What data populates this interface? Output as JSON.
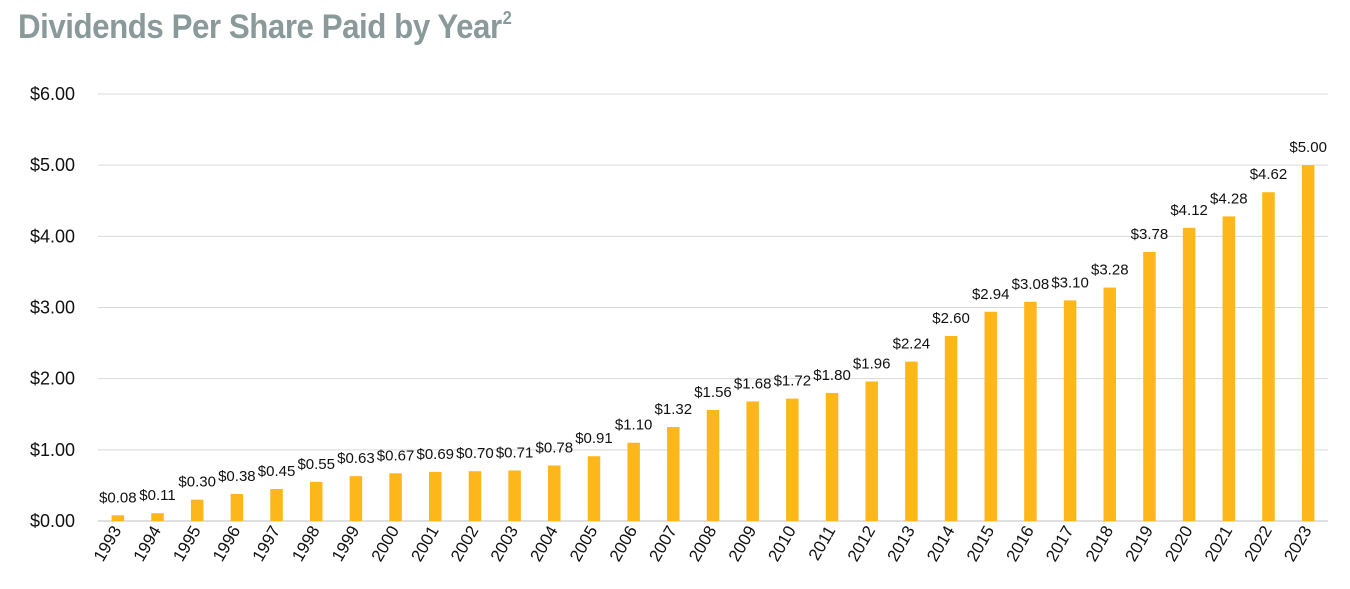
{
  "title": "Dividends Per Share Paid by Year",
  "title_superscript": "2",
  "chart_data": {
    "type": "bar",
    "title": "Dividends Per Share Paid by Year",
    "xlabel": "",
    "ylabel": "",
    "ylim": [
      0,
      6
    ],
    "yticks": [
      "$0.00",
      "$1.00",
      "$2.00",
      "$3.00",
      "$4.00",
      "$5.00",
      "$6.00"
    ],
    "grid": true,
    "bar_color": "#FDB71A",
    "categories": [
      "1993",
      "1994",
      "1995",
      "1996",
      "1997",
      "1998",
      "1999",
      "2000",
      "2001",
      "2002",
      "2003",
      "2004",
      "2005",
      "2006",
      "2007",
      "2008",
      "2009",
      "2010",
      "2011",
      "2012",
      "2013",
      "2014",
      "2015",
      "2016",
      "2017",
      "2018",
      "2019",
      "2020",
      "2021",
      "2022",
      "2023"
    ],
    "values": [
      0.08,
      0.11,
      0.3,
      0.38,
      0.45,
      0.55,
      0.63,
      0.67,
      0.69,
      0.7,
      0.71,
      0.78,
      0.91,
      1.1,
      1.32,
      1.56,
      1.68,
      1.72,
      1.8,
      1.96,
      2.24,
      2.6,
      2.94,
      3.08,
      3.1,
      3.28,
      3.78,
      4.12,
      4.28,
      4.62,
      5.0
    ],
    "data_labels": [
      "$0.08",
      "$0.11",
      "$0.30",
      "$0.38",
      "$0.45",
      "$0.55",
      "$0.63",
      "$0.67",
      "$0.69",
      "$0.70",
      "$0.71",
      "$0.78",
      "$0.91",
      "$1.10",
      "$1.32",
      "$1.56",
      "$1.68",
      "$1.72",
      "$1.80",
      "$1.96",
      "$2.24",
      "$2.60",
      "$2.94",
      "$3.08",
      "$3.10",
      "$3.28",
      "$3.78",
      "$4.12",
      "$4.28",
      "$4.62",
      "$5.00"
    ]
  }
}
